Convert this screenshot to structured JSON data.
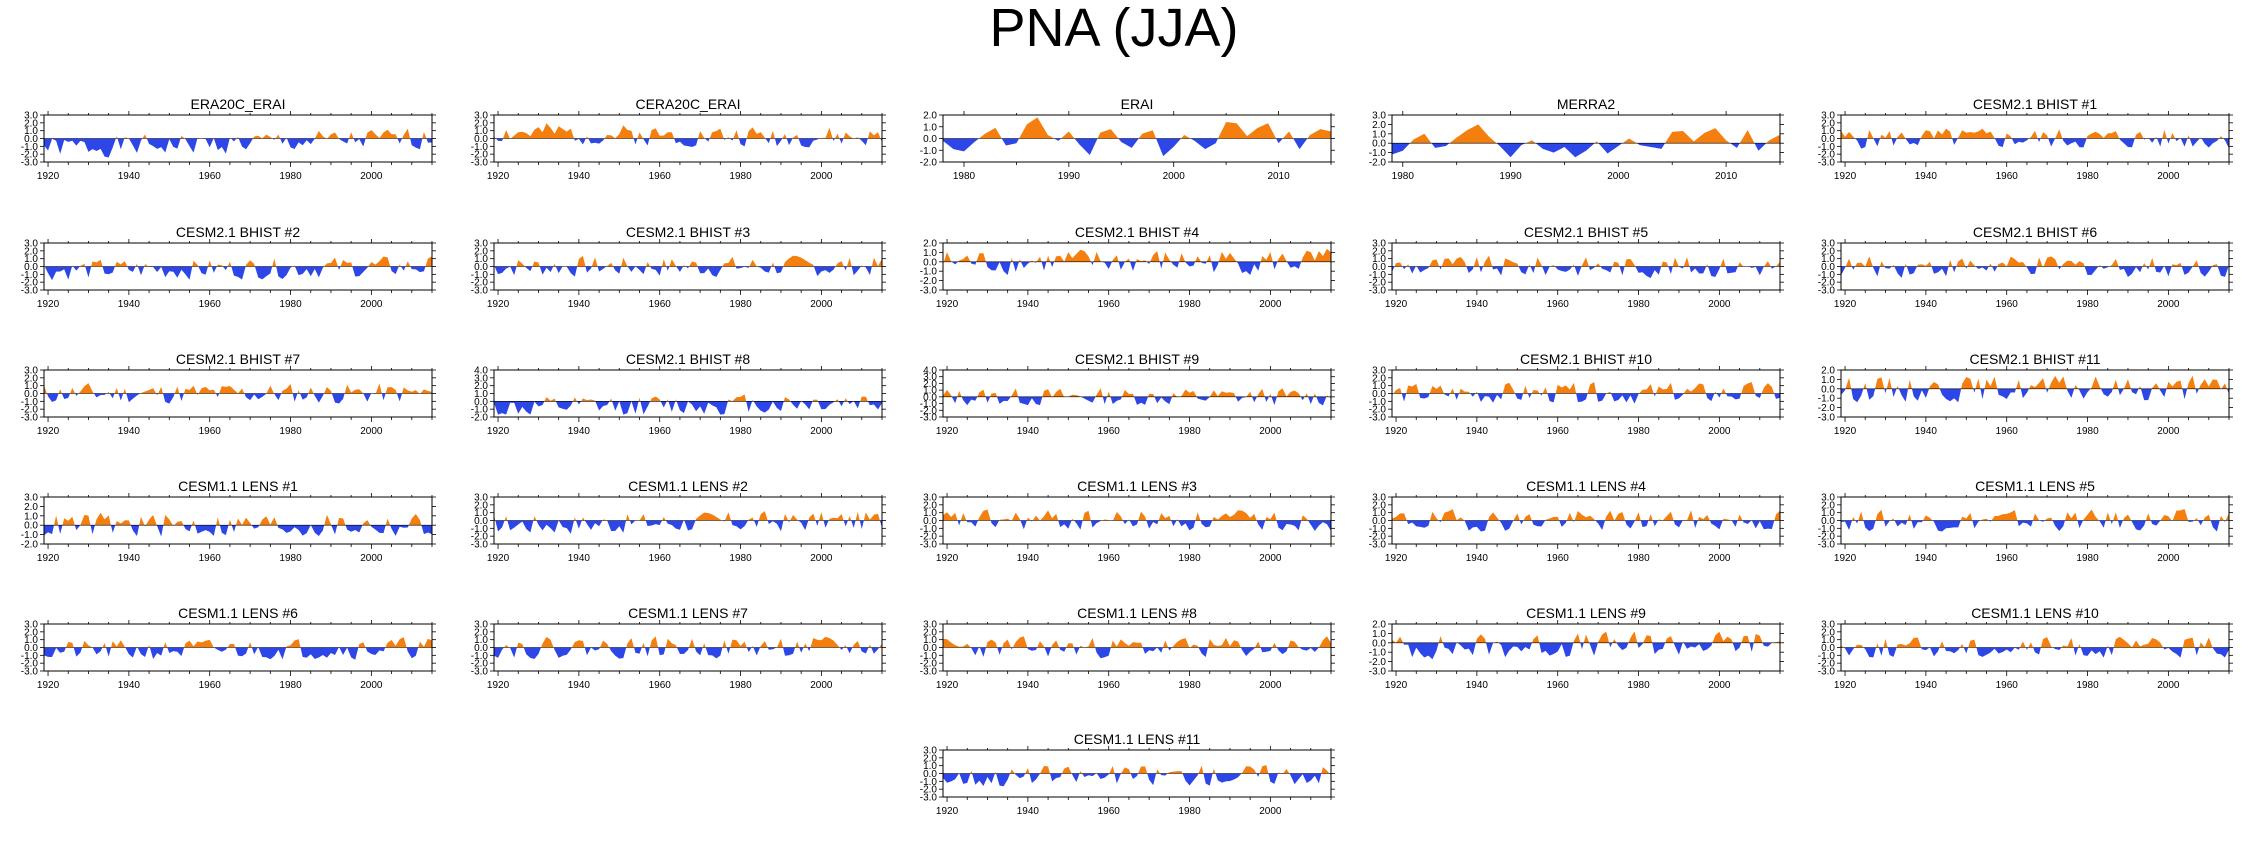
{
  "figure": {
    "title": "PNA (JJA)",
    "colors": {
      "positive": "#f47f0f",
      "negative": "#2c46e8",
      "axis": "#000000"
    }
  },
  "chart_data": [
    {
      "type": "area",
      "title": "ERA20C_ERAI",
      "xlim": [
        1919,
        2015
      ],
      "xticks": [
        "1920",
        "1940",
        "1960",
        "1980",
        "2000"
      ],
      "ylim": [
        -3,
        3
      ],
      "yticks": [
        "3.0",
        "2.0",
        "1.0",
        "0.0",
        "-1.0",
        "-2.0",
        "-3.0"
      ],
      "trend": -0.25,
      "seed": 1,
      "values": []
    },
    {
      "type": "area",
      "title": "CERA20C_ERAI",
      "xlim": [
        1919,
        2015
      ],
      "xticks": [
        "1920",
        "1940",
        "1960",
        "1980",
        "2000"
      ],
      "ylim": [
        -3,
        3
      ],
      "yticks": [
        "3.0",
        "2.0",
        "1.0",
        "0.0",
        "-1.0",
        "-2.0",
        "-3.0"
      ],
      "trend": 0.15,
      "seed": 2,
      "values": []
    },
    {
      "type": "area",
      "title": "ERAI",
      "xlim": [
        1978,
        2015
      ],
      "xticks": [
        "1980",
        "1990",
        "2000",
        "2010"
      ],
      "ylim": [
        -2,
        2
      ],
      "yticks": [
        "2.0",
        "1.0",
        "0.0",
        "-1.0",
        "-2.0"
      ],
      "trend": 0,
      "seed": 3,
      "values": [
        -0.2,
        -0.9,
        -1.1,
        -0.3,
        0.4,
        0.9,
        -0.6,
        -0.4,
        1.2,
        1.8,
        0.3,
        -0.2,
        0.6,
        -0.5,
        -1.4,
        0.5,
        0.8,
        -0.3,
        -0.8,
        0.4,
        0.7,
        -1.5,
        -0.7,
        0.3,
        -0.2,
        -0.9,
        -0.4,
        1.4,
        1.3,
        0.2,
        0.9,
        1.3,
        -0.4,
        0.6,
        -0.9,
        0.3,
        0.8,
        0.6
      ]
    },
    {
      "type": "area",
      "title": "MERRA2",
      "xlim": [
        1979,
        2015
      ],
      "xticks": [
        "1980",
        "1990",
        "2000",
        "2010"
      ],
      "ylim": [
        -2,
        3
      ],
      "yticks": [
        "3.0",
        "2.0",
        "1.0",
        "0.0",
        "-1.0",
        "-2.0"
      ],
      "trend": 0,
      "seed": 4,
      "values": [
        -1.2,
        -0.8,
        0.4,
        1.0,
        -0.5,
        -0.3,
        0.6,
        1.4,
        2.0,
        0.7,
        -0.3,
        -1.5,
        -0.2,
        0.3,
        -0.6,
        -1.0,
        -0.4,
        -1.5,
        -0.8,
        0.2,
        -1.1,
        -0.3,
        0.5,
        -0.2,
        -0.4,
        -0.6,
        1.2,
        1.3,
        0.2,
        1.1,
        1.6,
        0.3,
        -0.5,
        1.4,
        -0.8,
        0.3,
        0.9
      ]
    },
    {
      "type": "area",
      "title": "CESM2.1 BHIST #1",
      "xlim": [
        1919,
        2015
      ],
      "xticks": [
        "1920",
        "1940",
        "1960",
        "1980",
        "2000"
      ],
      "ylim": [
        -3,
        3
      ],
      "yticks": [
        "3.0",
        "2.0",
        "1.0",
        "0.0",
        "-1.0",
        "-2.0",
        "-3.0"
      ],
      "trend": 0,
      "seed": 5,
      "values": []
    },
    {
      "type": "area",
      "title": "CESM2.1 BHIST #2",
      "xlim": [
        1919,
        2015
      ],
      "xticks": [
        "1920",
        "1940",
        "1960",
        "1980",
        "2000"
      ],
      "ylim": [
        -3,
        3
      ],
      "yticks": [
        "3.0",
        "2.0",
        "1.0",
        "0.0",
        "-1.0",
        "-2.0",
        "-3.0"
      ],
      "trend": -0.1,
      "seed": 6,
      "values": []
    },
    {
      "type": "area",
      "title": "CESM2.1 BHIST #3",
      "xlim": [
        1919,
        2015
      ],
      "xticks": [
        "1920",
        "1940",
        "1960",
        "1980",
        "2000"
      ],
      "ylim": [
        -3,
        3
      ],
      "yticks": [
        "3.0",
        "2.0",
        "1.0",
        "0.0",
        "-1.0",
        "-2.0",
        "-3.0"
      ],
      "trend": 0,
      "seed": 7,
      "values": []
    },
    {
      "type": "area",
      "title": "CESM2.1 BHIST #4",
      "xlim": [
        1919,
        2015
      ],
      "xticks": [
        "1920",
        "1940",
        "1960",
        "1980",
        "2000"
      ],
      "ylim": [
        -3,
        2
      ],
      "yticks": [
        "2.0",
        "1.0",
        "0.0",
        "-1.0",
        "-2.0",
        "-3.0"
      ],
      "trend": 0,
      "seed": 8,
      "values": []
    },
    {
      "type": "area",
      "title": "CESM2.1 BHIST #5",
      "xlim": [
        1919,
        2015
      ],
      "xticks": [
        "1920",
        "1940",
        "1960",
        "1980",
        "2000"
      ],
      "ylim": [
        -3,
        3
      ],
      "yticks": [
        "3.0",
        "2.0",
        "1.0",
        "0.0",
        "-1.0",
        "-2.0",
        "-3.0"
      ],
      "trend": 0,
      "seed": 9,
      "values": []
    },
    {
      "type": "area",
      "title": "CESM2.1 BHIST #6",
      "xlim": [
        1919,
        2015
      ],
      "xticks": [
        "1920",
        "1940",
        "1960",
        "1980",
        "2000"
      ],
      "ylim": [
        -3,
        3
      ],
      "yticks": [
        "3.0",
        "2.0",
        "1.0",
        "0.0",
        "-1.0",
        "-2.0",
        "-3.0"
      ],
      "trend": 0,
      "seed": 10,
      "values": []
    },
    {
      "type": "area",
      "title": "CESM2.1 BHIST #7",
      "xlim": [
        1919,
        2015
      ],
      "xticks": [
        "1920",
        "1940",
        "1960",
        "1980",
        "2000"
      ],
      "ylim": [
        -3,
        3
      ],
      "yticks": [
        "3.0",
        "2.0",
        "1.0",
        "0.0",
        "-1.0",
        "-2.0",
        "-3.0"
      ],
      "trend": 0,
      "seed": 11,
      "values": []
    },
    {
      "type": "area",
      "title": "CESM2.1 BHIST #8",
      "xlim": [
        1919,
        2015
      ],
      "xticks": [
        "1920",
        "1940",
        "1960",
        "1980",
        "2000"
      ],
      "ylim": [
        -2,
        4
      ],
      "yticks": [
        "4.0",
        "3.0",
        "2.0",
        "1.0",
        "0.0",
        "-1.0",
        "-2.0"
      ],
      "trend": -0.2,
      "seed": 12,
      "values": []
    },
    {
      "type": "area",
      "title": "CESM2.1 BHIST #9",
      "xlim": [
        1919,
        2015
      ],
      "xticks": [
        "1920",
        "1940",
        "1960",
        "1980",
        "2000"
      ],
      "ylim": [
        -3,
        4
      ],
      "yticks": [
        "4.0",
        "3.0",
        "2.0",
        "1.0",
        "0.0",
        "-1.0",
        "-2.0",
        "-3.0"
      ],
      "trend": 0,
      "seed": 13,
      "values": []
    },
    {
      "type": "area",
      "title": "CESM2.1 BHIST #10",
      "xlim": [
        1919,
        2015
      ],
      "xticks": [
        "1920",
        "1940",
        "1960",
        "1980",
        "2000"
      ],
      "ylim": [
        -3,
        3
      ],
      "yticks": [
        "3.0",
        "2.0",
        "1.0",
        "0.0",
        "-1.0",
        "-2.0",
        "-3.0"
      ],
      "trend": 0,
      "seed": 14,
      "values": []
    },
    {
      "type": "area",
      "title": "CESM2.1 BHIST #11",
      "xlim": [
        1919,
        2015
      ],
      "xticks": [
        "1920",
        "1940",
        "1960",
        "1980",
        "2000"
      ],
      "ylim": [
        -3,
        2
      ],
      "yticks": [
        "2.0",
        "1.0",
        "0.0",
        "-1.0",
        "-2.0",
        "-3.0"
      ],
      "trend": 0,
      "seed": 15,
      "values": []
    },
    {
      "type": "area",
      "title": "CESM1.1 LENS #1",
      "xlim": [
        1919,
        2015
      ],
      "xticks": [
        "1920",
        "1940",
        "1960",
        "1980",
        "2000"
      ],
      "ylim": [
        -2,
        3
      ],
      "yticks": [
        "3.0",
        "2.0",
        "1.0",
        "0.0",
        "-1.0",
        "-2.0"
      ],
      "trend": 0,
      "seed": 16,
      "values": []
    },
    {
      "type": "area",
      "title": "CESM1.1 LENS #2",
      "xlim": [
        1919,
        2015
      ],
      "xticks": [
        "1920",
        "1940",
        "1960",
        "1980",
        "2000"
      ],
      "ylim": [
        -3,
        3
      ],
      "yticks": [
        "3.0",
        "2.0",
        "1.0",
        "0.0",
        "-1.0",
        "-2.0",
        "-3.0"
      ],
      "trend": -0.1,
      "seed": 17,
      "values": []
    },
    {
      "type": "area",
      "title": "CESM1.1 LENS #3",
      "xlim": [
        1919,
        2015
      ],
      "xticks": [
        "1920",
        "1940",
        "1960",
        "1980",
        "2000"
      ],
      "ylim": [
        -3,
        3
      ],
      "yticks": [
        "3.0",
        "2.0",
        "1.0",
        "0.0",
        "-1.0",
        "-2.0",
        "-3.0"
      ],
      "trend": 0,
      "seed": 18,
      "values": []
    },
    {
      "type": "area",
      "title": "CESM1.1 LENS #4",
      "xlim": [
        1919,
        2015
      ],
      "xticks": [
        "1920",
        "1940",
        "1960",
        "1980",
        "2000"
      ],
      "ylim": [
        -3,
        3
      ],
      "yticks": [
        "3.0",
        "2.0",
        "1.0",
        "0.0",
        "-1.0",
        "-2.0",
        "-3.0"
      ],
      "trend": 0,
      "seed": 19,
      "values": []
    },
    {
      "type": "area",
      "title": "CESM1.1 LENS #5",
      "xlim": [
        1919,
        2015
      ],
      "xticks": [
        "1920",
        "1940",
        "1960",
        "1980",
        "2000"
      ],
      "ylim": [
        -3,
        3
      ],
      "yticks": [
        "3.0",
        "2.0",
        "1.0",
        "0.0",
        "-1.0",
        "-2.0",
        "-3.0"
      ],
      "trend": 0,
      "seed": 20,
      "values": []
    },
    {
      "type": "area",
      "title": "CESM1.1 LENS #6",
      "xlim": [
        1919,
        2015
      ],
      "xticks": [
        "1920",
        "1940",
        "1960",
        "1980",
        "2000"
      ],
      "ylim": [
        -3,
        3
      ],
      "yticks": [
        "3.0",
        "2.0",
        "1.0",
        "0.0",
        "-1.0",
        "-2.0",
        "-3.0"
      ],
      "trend": -0.1,
      "seed": 21,
      "values": []
    },
    {
      "type": "area",
      "title": "CESM1.1 LENS #7",
      "xlim": [
        1919,
        2015
      ],
      "xticks": [
        "1920",
        "1940",
        "1960",
        "1980",
        "2000"
      ],
      "ylim": [
        -3,
        3
      ],
      "yticks": [
        "3.0",
        "2.0",
        "1.0",
        "0.0",
        "-1.0",
        "-2.0",
        "-3.0"
      ],
      "trend": 0,
      "seed": 22,
      "values": []
    },
    {
      "type": "area",
      "title": "CESM1.1 LENS #8",
      "xlim": [
        1919,
        2015
      ],
      "xticks": [
        "1920",
        "1940",
        "1960",
        "1980",
        "2000"
      ],
      "ylim": [
        -3,
        3
      ],
      "yticks": [
        "3.0",
        "2.0",
        "1.0",
        "0.0",
        "-1.0",
        "-2.0",
        "-3.0"
      ],
      "trend": 0,
      "seed": 23,
      "values": []
    },
    {
      "type": "area",
      "title": "CESM1.1 LENS #9",
      "xlim": [
        1919,
        2015
      ],
      "xticks": [
        "1920",
        "1940",
        "1960",
        "1980",
        "2000"
      ],
      "ylim": [
        -3,
        2
      ],
      "yticks": [
        "2.0",
        "1.0",
        "0.0",
        "-1.0",
        "-2.0",
        "-3.0"
      ],
      "trend": -0.1,
      "seed": 24,
      "values": []
    },
    {
      "type": "area",
      "title": "CESM1.1 LENS #10",
      "xlim": [
        1919,
        2015
      ],
      "xticks": [
        "1920",
        "1940",
        "1960",
        "1980",
        "2000"
      ],
      "ylim": [
        -3,
        3
      ],
      "yticks": [
        "3.0",
        "2.0",
        "1.0",
        "0.0",
        "-1.0",
        "-2.0",
        "-3.0"
      ],
      "trend": 0,
      "seed": 25,
      "values": []
    },
    {
      "type": "area",
      "title": "CESM1.1 LENS #11",
      "xlim": [
        1919,
        2015
      ],
      "xticks": [
        "1920",
        "1940",
        "1960",
        "1980",
        "2000"
      ],
      "ylim": [
        -3,
        3
      ],
      "yticks": [
        "3.0",
        "2.0",
        "1.0",
        "0.0",
        "-1.0",
        "-2.0",
        "-3.0"
      ],
      "trend": -0.1,
      "seed": 26,
      "values": []
    }
  ]
}
